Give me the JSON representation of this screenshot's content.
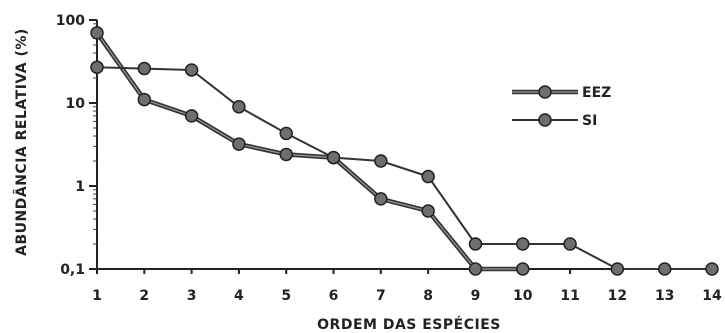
{
  "chart_data": {
    "type": "line",
    "xlabel": "ORDEM DAS ESPÉCIES",
    "ylabel": "ABUNDÂNCIA RELATIVA (%)",
    "y_scale": "log",
    "ylim": [
      0.1,
      100
    ],
    "xlim": [
      1,
      14
    ],
    "x_ticks": [
      "1",
      "2",
      "3",
      "4",
      "5",
      "6",
      "7",
      "8",
      "9",
      "10",
      "11",
      "12",
      "13",
      "14"
    ],
    "y_ticks": [
      {
        "value": 100,
        "label": "100"
      },
      {
        "value": 10,
        "label": "10"
      },
      {
        "value": 1,
        "label": "1"
      },
      {
        "value": 0.1,
        "label": "0,1"
      }
    ],
    "legend_position": "right",
    "series": [
      {
        "name": "EEZ",
        "style": "thick",
        "x": [
          1,
          2,
          3,
          4,
          5,
          6,
          7,
          8,
          9,
          10
        ],
        "values": [
          70,
          11,
          7,
          3.2,
          2.4,
          2.2,
          0.7,
          0.5,
          0.1,
          0.1
        ]
      },
      {
        "name": "SI",
        "style": "thin",
        "x": [
          1,
          2,
          3,
          4,
          5,
          6,
          7,
          8,
          9,
          10,
          11,
          12,
          13,
          14
        ],
        "values": [
          27,
          26,
          25,
          9,
          4.3,
          2.2,
          2.0,
          1.3,
          0.2,
          0.2,
          0.2,
          0.1,
          0.1,
          0.1
        ]
      }
    ],
    "colors": {
      "line": "#333333",
      "marker": "#6e6e6e",
      "marker_edge": "#222222"
    }
  }
}
